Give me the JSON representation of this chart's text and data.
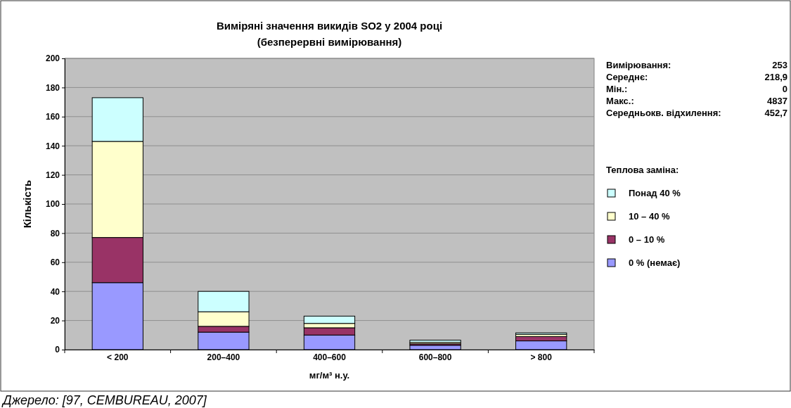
{
  "chart_data": {
    "type": "bar",
    "title": "Виміряні значення викидів SO2 у 2004 році",
    "subtitle": "(безперервні вимірювання)",
    "xlabel": "мг/м³ н.у.",
    "ylabel": "Кількість",
    "legend_title": "Теплова заміна:",
    "categories": [
      "< 200",
      "200–400",
      "400–600",
      "600–800",
      "> 800"
    ],
    "series": [
      {
        "name": "0 % (немає)",
        "color": "#9999ff",
        "values": [
          46,
          12,
          10,
          3,
          6
        ]
      },
      {
        "name": "0 – 10 %",
        "color": "#993366",
        "values": [
          31,
          4,
          5,
          1,
          3
        ]
      },
      {
        "name": "10 – 40 %",
        "color": "#ffffcc",
        "values": [
          66,
          10,
          3,
          1,
          1.5
        ]
      },
      {
        "name": "Понад 40 %",
        "color": "#ccffff",
        "values": [
          30,
          14,
          5,
          1.5,
          1
        ]
      }
    ],
    "stacked": true,
    "ylim": [
      0,
      200
    ],
    "yticks": [
      0,
      20,
      40,
      60,
      80,
      100,
      120,
      140,
      160,
      180,
      200
    ],
    "grid": "y",
    "legend": "right",
    "annotations": [
      "Вимірювання: 253",
      "Середнє: 218,9",
      "Мін.: 0",
      "Макс.: 4837",
      "Середньокв. відхилення: 452,7",
      "Джерело: [97, CEMBUREAU, 2007]"
    ]
  }
}
